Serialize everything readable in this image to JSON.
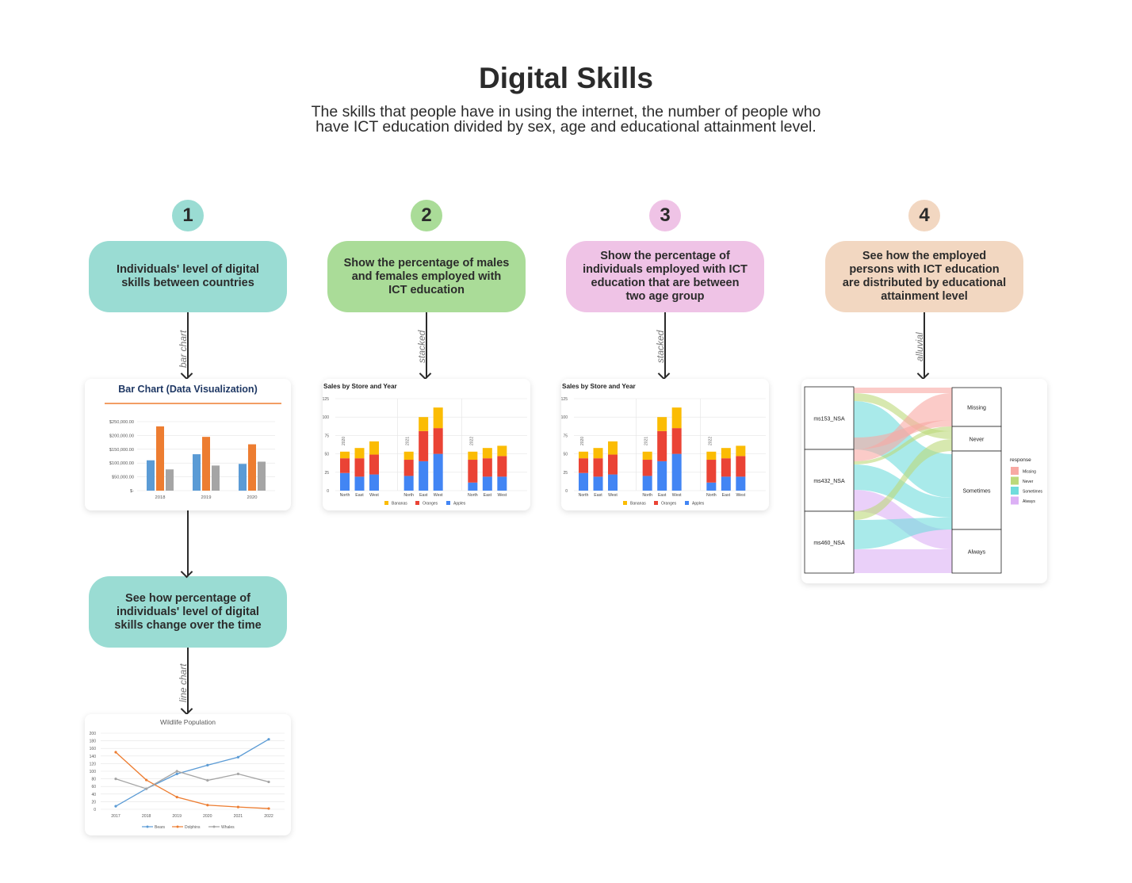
{
  "header": {
    "title": "Digital Skills",
    "subtitle": "The skills that people have in using the internet, the number of people who have ICT education divided by sex, age and educational attainment level."
  },
  "columns": [
    {
      "number": "1",
      "card": "Individuals' level of digital skills between countries",
      "edge_label": "bar chart"
    },
    {
      "number": "2",
      "card": "Show the percentage of males and females employed with ICT education",
      "edge_label": "stacked"
    },
    {
      "number": "3",
      "card": "Show the percentage of individuals employed with ICT education that are between two age group",
      "edge_label": "stacked"
    },
    {
      "number": "4",
      "card": "See how the employed persons with ICT education are distributed by educational attainment level",
      "edge_label": "alluvial"
    }
  ],
  "second_card": {
    "card": "See how percentage of individuals' level of digital skills change over the time",
    "edge_label": "line chart"
  },
  "colors": {
    "teal": "#9adcd3",
    "green": "#aadc98",
    "pink": "#efc3e6",
    "peach": "#f2d7c1"
  },
  "chart_data": [
    {
      "type": "bar",
      "title": "Bar Chart (Data Visualization)",
      "categories": [
        "2018",
        "2019",
        "2020"
      ],
      "yticks": [
        "$250,000.00",
        "$200,000.00",
        "$150,000.00",
        "$100,000.00",
        "$50,000.00",
        "$-"
      ],
      "ylim": [
        0,
        250000
      ],
      "series": [
        {
          "color": "#5b9bd5",
          "values": [
            110000,
            132000,
            97000
          ]
        },
        {
          "color": "#ed7d31",
          "values": [
            233000,
            195000,
            168000
          ]
        },
        {
          "color": "#a5a5a5",
          "values": [
            77000,
            91000,
            105000
          ]
        }
      ]
    },
    {
      "type": "bar",
      "title": "Sales by Store and Year",
      "stacked": true,
      "groups": [
        "2020",
        "2021",
        "2022"
      ],
      "categories": [
        "North",
        "East",
        "West"
      ],
      "yticks": [
        "125",
        "100",
        "75",
        "50",
        "25",
        "0"
      ],
      "ylim": [
        0,
        125
      ],
      "series": [
        {
          "name": "Apples",
          "color": "#4285f4",
          "values": [
            [
              24,
              19,
              22
            ],
            [
              20,
              40,
              50
            ],
            [
              11,
              19,
              19
            ]
          ]
        },
        {
          "name": "Oranges",
          "color": "#ea4335",
          "values": [
            [
              20,
              25,
              27
            ],
            [
              22,
              41,
              35
            ],
            [
              31,
              25,
              28
            ]
          ]
        },
        {
          "name": "Bananas",
          "color": "#fbbc04",
          "values": [
            [
              9,
              14,
              18
            ],
            [
              11,
              19,
              28
            ],
            [
              11,
              14,
              14
            ]
          ]
        }
      ],
      "legend": [
        "Bananas",
        "Oranges",
        "Apples"
      ]
    },
    {
      "type": "bar",
      "title": "Sales by Store and Year",
      "stacked": true,
      "groups": [
        "2020",
        "2021",
        "2022"
      ],
      "categories": [
        "North",
        "East",
        "West"
      ],
      "yticks": [
        "125",
        "100",
        "75",
        "50",
        "25",
        "0"
      ],
      "ylim": [
        0,
        125
      ],
      "series": [
        {
          "name": "Apples",
          "color": "#4285f4",
          "values": [
            [
              24,
              19,
              22
            ],
            [
              20,
              40,
              50
            ],
            [
              11,
              19,
              19
            ]
          ]
        },
        {
          "name": "Oranges",
          "color": "#ea4335",
          "values": [
            [
              20,
              25,
              27
            ],
            [
              22,
              41,
              35
            ],
            [
              31,
              25,
              28
            ]
          ]
        },
        {
          "name": "Bananas",
          "color": "#fbbc04",
          "values": [
            [
              9,
              14,
              18
            ],
            [
              11,
              19,
              28
            ],
            [
              11,
              14,
              14
            ]
          ]
        }
      ],
      "legend": [
        "Bananas",
        "Oranges",
        "Apples"
      ]
    },
    {
      "type": "alluvial",
      "left_nodes": [
        "ms153_NSA",
        "ms432_NSA",
        "ms460_NSA"
      ],
      "right_nodes": [
        "Missing",
        "Never",
        "Sometimes",
        "Always"
      ],
      "legend_title": "response",
      "legend": [
        {
          "name": "Missing",
          "color": "#f8a9a3"
        },
        {
          "name": "Never",
          "color": "#bcd97a"
        },
        {
          "name": "Sometimes",
          "color": "#6fdcdc"
        },
        {
          "name": "Always",
          "color": "#dcb0f5"
        }
      ]
    },
    {
      "type": "line",
      "title": "Wildlife Population",
      "x": [
        "2017",
        "2018",
        "2019",
        "2020",
        "2021",
        "2022"
      ],
      "yticks": [
        "200",
        "180",
        "160",
        "140",
        "120",
        "100",
        "80",
        "60",
        "40",
        "20",
        "0"
      ],
      "ylim": [
        0,
        200
      ],
      "series": [
        {
          "name": "Bears",
          "color": "#5b9bd5",
          "values": [
            8,
            54,
            93,
            116,
            137,
            184
          ]
        },
        {
          "name": "Dolphins",
          "color": "#ed7d31",
          "values": [
            150,
            77,
            32,
            11,
            6,
            2
          ]
        },
        {
          "name": "Whales",
          "color": "#a5a5a5",
          "values": [
            80,
            54,
            100,
            76,
            93,
            72
          ]
        }
      ]
    }
  ]
}
